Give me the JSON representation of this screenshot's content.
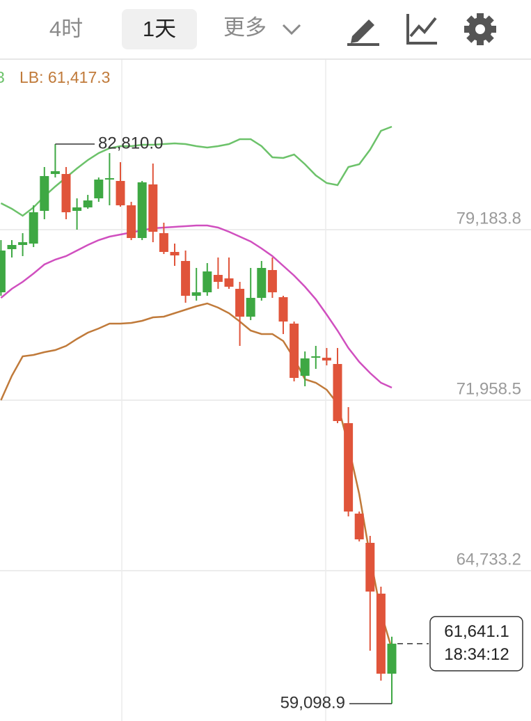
{
  "ui": {
    "tabs": [
      "4时",
      "1天",
      "更多"
    ],
    "selected_tab": 1
  },
  "chart_data": {
    "type": "candlestick",
    "legend_fragment": "3",
    "categories": [
      null,
      null,
      null,
      null,
      null,
      null,
      null,
      null,
      null,
      null,
      null,
      null,
      null,
      null,
      null,
      null,
      null,
      null,
      null,
      null,
      null,
      null,
      null,
      null,
      null,
      null,
      null,
      null,
      null,
      null,
      null,
      null,
      null,
      null,
      null,
      null,
      null
    ],
    "open": [
      76530,
      78358,
      78535,
      78594,
      79980,
      81543,
      81543,
      79980,
      80127,
      80511,
      81307,
      81248,
      80216,
      78830,
      81101,
      79036,
      78240,
      77857,
      76382,
      76530,
      77267,
      77119,
      76677,
      75497,
      76294,
      77473,
      76323,
      75203,
      72991,
      73758,
      73758,
      73492,
      70985,
      67152,
      65913,
      63760,
      60369
    ],
    "high": [
      78742,
      78742,
      79036,
      80216,
      81838,
      82810,
      81838,
      80511,
      80658,
      81396,
      82428,
      82044,
      80363,
      81248,
      81985,
      79479,
      78594,
      78299,
      77562,
      77768,
      78004,
      78004,
      76972,
      77562,
      77857,
      78004,
      76382,
      75291,
      74023,
      74259,
      74170,
      74170,
      71664,
      67240,
      66209,
      64055,
      61936
    ],
    "low": [
      76382,
      78004,
      78063,
      78446,
      79626,
      81396,
      79626,
      79184,
      80068,
      80363,
      80216,
      80157,
      78741,
      78741,
      78653,
      78152,
      77650,
      76087,
      76176,
      76382,
      76677,
      76677,
      74259,
      75350,
      76176,
      76294,
      74760,
      72755,
      72548,
      73286,
      73433,
      70985,
      67033,
      65972,
      61342,
      60074,
      59098.9
    ],
    "close": [
      78299,
      78535,
      78653,
      79921,
      81455,
      81661,
      79921,
      80127,
      80422,
      81307,
      81366,
      80216,
      78830,
      81189,
      79095,
      78240,
      78093,
      76382,
      76530,
      77414,
      76972,
      76765,
      75497,
      76294,
      77562,
      76530,
      75291,
      72902,
      73728,
      73817,
      73640,
      71074,
      67240,
      66061,
      63849,
      60369,
      61641.1
    ],
    "up_color": "#3ea843",
    "down_color": "#e0543a",
    "bands": [
      {
        "color": "#6cc26a",
        "values": [
          80305,
          80069,
          79774,
          80128,
          80600,
          81012,
          81396,
          81779,
          82133,
          82428,
          82634,
          82723,
          82723,
          82782,
          82782,
          82811,
          82841,
          82811,
          82723,
          82664,
          82723,
          82811,
          83018,
          83018,
          82723,
          82251,
          82221,
          82369,
          81956,
          81484,
          81160,
          81071,
          81838,
          81956,
          82575,
          83372,
          83549
        ]
      },
      {
        "color": "#d04fbf",
        "values": [
          76294,
          76677,
          76972,
          77326,
          77709,
          77916,
          78063,
          78299,
          78535,
          78742,
          78889,
          78978,
          79066,
          79155,
          79243,
          79272,
          79302,
          79331,
          79361,
          79361,
          79272,
          79096,
          78889,
          78683,
          78388,
          78063,
          77651,
          77238,
          76766,
          76235,
          75586,
          74908,
          74171,
          73581,
          73109,
          72696,
          72490
        ]
      },
      {
        "color": "#c07a3a",
        "legend": "LB: 61,417.3",
        "values": [
          71959,
          72991,
          73817,
          73876,
          73994,
          74082,
          74259,
          74554,
          74819,
          74996,
          75203,
          75203,
          75232,
          75321,
          75468,
          75498,
          75645,
          75793,
          75940,
          76058,
          75881,
          75645,
          75291,
          74908,
          74760,
          74760,
          74466,
          73728,
          72844,
          72696,
          72401,
          71811,
          70042,
          67978,
          65324,
          62964,
          61417.3
        ]
      }
    ],
    "ylim": [
      58364,
      86409
    ],
    "yticks": [
      {
        "value": 79183.8,
        "label": "79,183.8"
      },
      {
        "value": 71958.5,
        "label": "71,958.5"
      },
      {
        "value": 64733.2,
        "label": "64,733.2"
      }
    ],
    "grid": true,
    "high_marker": {
      "value": 82810,
      "label": "82,810.0"
    },
    "low_marker": {
      "value": 59098.9,
      "label": "59,098.9"
    },
    "last_price": {
      "value": 61641.1,
      "label": "61,641.1",
      "time": "18:34:12"
    }
  }
}
